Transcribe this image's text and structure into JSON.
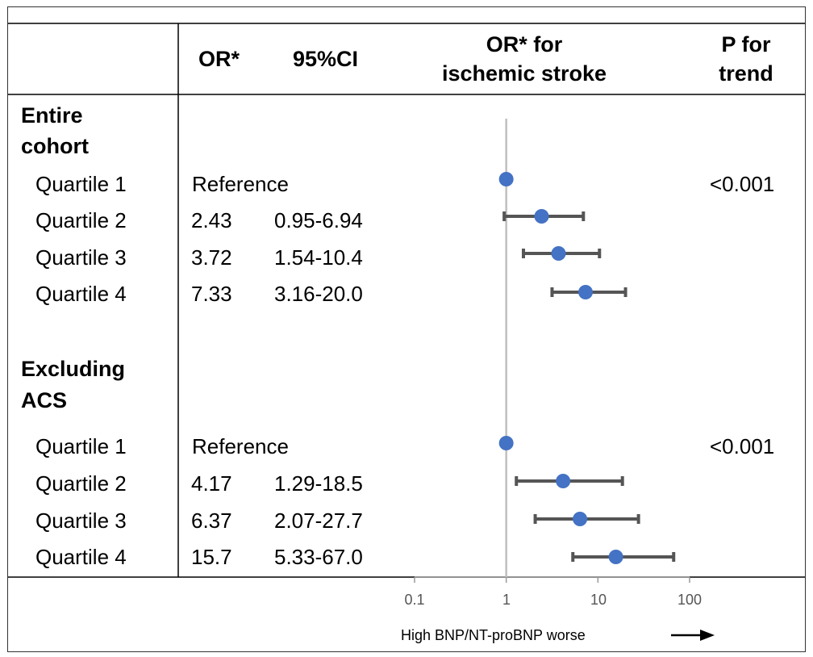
{
  "headers": {
    "or": "OR*",
    "ci": "95%CI",
    "plot_line1": "OR* for",
    "plot_line2": "ischemic stroke",
    "p_line1": "P for",
    "p_line2": "trend"
  },
  "groups": [
    {
      "label_line1": "Entire",
      "label_line2": "cohort",
      "p_trend": "<0.001",
      "rows": [
        {
          "label": "Quartile 1",
          "or": "",
          "ci": "",
          "reference": "Reference"
        },
        {
          "label": "Quartile 2",
          "or": "2.43",
          "ci": "0.95-6.94",
          "reference": ""
        },
        {
          "label": "Quartile 3",
          "or": "3.72",
          "ci": "1.54-10.4",
          "reference": ""
        },
        {
          "label": "Quartile 4",
          "or": "7.33",
          "ci": "3.16-20.0",
          "reference": ""
        }
      ]
    },
    {
      "label_line1": "Excluding",
      "label_line2": "ACS",
      "p_trend": "<0.001",
      "rows": [
        {
          "label": "Quartile 1",
          "or": "",
          "ci": "",
          "reference": "Reference"
        },
        {
          "label": "Quartile 2",
          "or": "4.17",
          "ci": "1.29-18.5",
          "reference": ""
        },
        {
          "label": "Quartile 3",
          "or": "6.37",
          "ci": "2.07-27.7",
          "reference": ""
        },
        {
          "label": "Quartile 4",
          "or": "15.7",
          "ci": "5.33-67.0",
          "reference": ""
        }
      ]
    }
  ],
  "axis": {
    "ticks": [
      "0.1",
      "1",
      "10",
      "100"
    ],
    "footnote": "High BNP/NT-proBNP worse"
  },
  "chart_data": {
    "type": "scatter",
    "x_scale": "log",
    "xlim": [
      0.1,
      100
    ],
    "ticks": [
      0.1,
      1,
      10,
      100
    ],
    "reference_line": 1,
    "colors": {
      "point": "#4472C4",
      "errorbar": "#555555",
      "refline": "#bfbfbf"
    },
    "points": [
      {
        "group": "Entire cohort",
        "quartile": "Quartile 1",
        "or": 1,
        "lo": null,
        "hi": null
      },
      {
        "group": "Entire cohort",
        "quartile": "Quartile 2",
        "or": 2.43,
        "lo": 0.95,
        "hi": 6.94
      },
      {
        "group": "Entire cohort",
        "quartile": "Quartile 3",
        "or": 3.72,
        "lo": 1.54,
        "hi": 10.4
      },
      {
        "group": "Entire cohort",
        "quartile": "Quartile 4",
        "or": 7.33,
        "lo": 3.16,
        "hi": 20.0
      },
      {
        "group": "Excluding ACS",
        "quartile": "Quartile 1",
        "or": 1,
        "lo": null,
        "hi": null
      },
      {
        "group": "Excluding ACS",
        "quartile": "Quartile 2",
        "or": 4.17,
        "lo": 1.29,
        "hi": 18.5
      },
      {
        "group": "Excluding ACS",
        "quartile": "Quartile 3",
        "or": 6.37,
        "lo": 2.07,
        "hi": 27.7
      },
      {
        "group": "Excluding ACS",
        "quartile": "Quartile 4",
        "or": 15.7,
        "lo": 5.33,
        "hi": 67.0
      }
    ]
  }
}
